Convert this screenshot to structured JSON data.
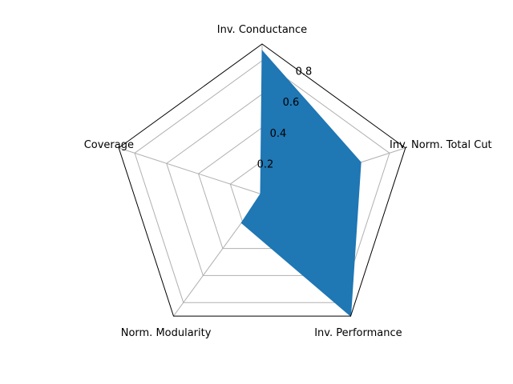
{
  "chart_data": {
    "type": "radar",
    "axes": [
      "Inv. Conductance",
      "Inv. Norm. Total Cut",
      "Inv. Performance",
      "Norm. Modularity",
      "Coverage"
    ],
    "r_ticks": [
      0.2,
      0.4,
      0.6,
      0.8
    ],
    "r_tick_labels": [
      "0.2",
      "0.4",
      "0.6",
      "0.8"
    ],
    "rlim": [
      0,
      0.9
    ],
    "grid": true,
    "series": [
      {
        "values": [
          0.86,
          0.62,
          0.9,
          0.21,
          0.01
        ],
        "color": "#1f77b4"
      }
    ]
  }
}
